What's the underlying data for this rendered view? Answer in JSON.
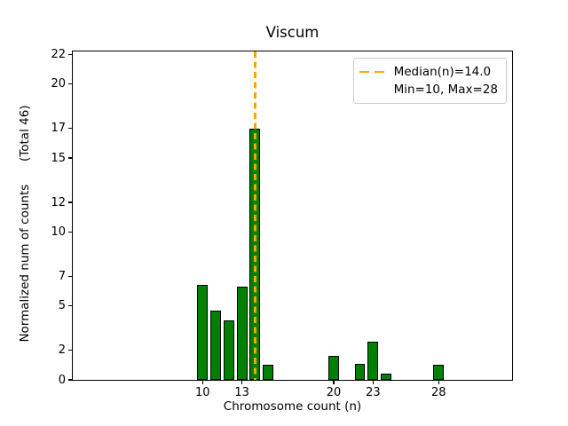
{
  "chart_data": {
    "type": "bar",
    "title": "Viscum",
    "xlabel": "Chromosome count (n)",
    "ylabel": "Normalized num of counts      (Total 46)",
    "total_counts": 46,
    "x": [
      10,
      11,
      12,
      13,
      14,
      15,
      20,
      22,
      23,
      24,
      28
    ],
    "values": [
      6.4,
      4.7,
      4.0,
      6.3,
      17.0,
      1.0,
      1.6,
      1.1,
      2.6,
      0.4,
      1.0
    ],
    "bar_width": 0.8,
    "median_line": {
      "x": 14.0,
      "style": "dashed"
    },
    "min": 10,
    "max": 28,
    "x_ticks": [
      10,
      13,
      20,
      23,
      28
    ],
    "y_ticks": [
      0,
      2,
      5,
      7,
      10,
      12,
      15,
      17,
      20,
      22
    ],
    "xlim": [
      0.1,
      33.6
    ],
    "ylim": [
      0,
      22.2
    ],
    "grid": false,
    "legend_position": "upper right",
    "legend": [
      {
        "label": "Median(n)=14.0",
        "marker": "orange-dashed-line"
      },
      {
        "label": "Min=10, Max=28",
        "marker": "none"
      }
    ],
    "colors": {
      "bar_fill": "#008000",
      "bar_edge": "#000000",
      "median_line": "#ffa500",
      "legend_border": "#cccccc",
      "text": "#000000"
    }
  }
}
